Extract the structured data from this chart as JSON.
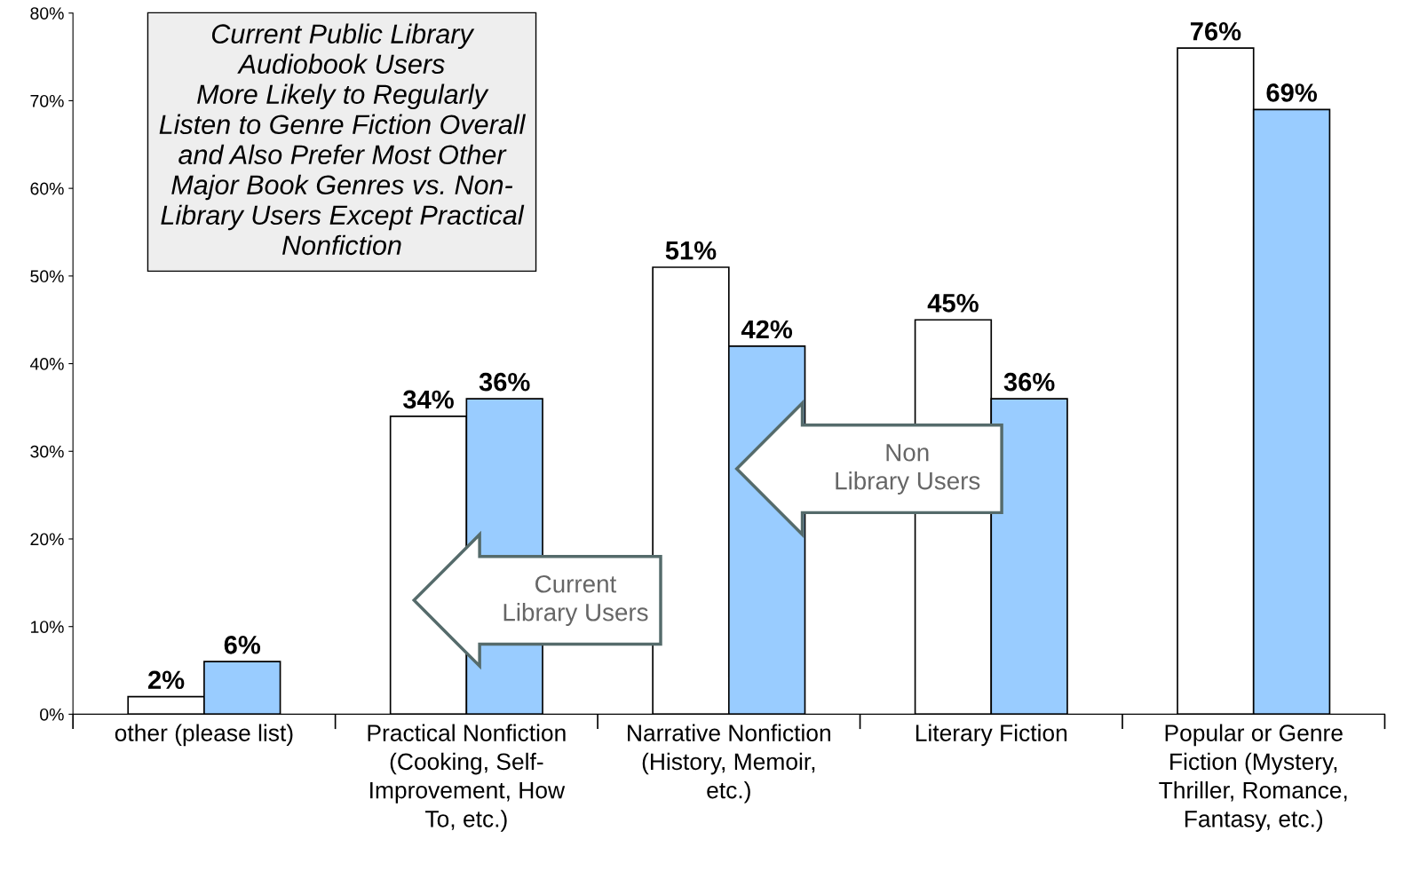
{
  "chart_data": {
    "type": "bar",
    "title": "Current Public Library\nAudiobook Users\nMore Likely to Regularly\nListen to Genre Fiction Overall\nand Also Prefer Most Other\nMajor Book Genres vs. Non-\nLibrary Users Except Practical\nNonfiction",
    "categories": [
      "other (please list)",
      "Practical Nonfiction\n(Cooking, Self-\nImprovement, How\nTo, etc.)",
      "Narrative Nonfiction\n(History, Memoir,\netc.)",
      "Literary Fiction",
      "Popular or Genre\nFiction (Mystery,\nThriller, Romance,\nFantasy, etc.)"
    ],
    "series": [
      {
        "name": "Current\nLibrary Users",
        "color": "#ffffff",
        "values": [
          2,
          34,
          51,
          45,
          76
        ],
        "value_labels": [
          "2%",
          "34%",
          "51%",
          "45%",
          "76%"
        ]
      },
      {
        "name": "Non\nLibrary Users",
        "color": "#99ccff",
        "values": [
          6,
          36,
          42,
          36,
          69
        ],
        "value_labels": [
          "6%",
          "36%",
          "42%",
          "36%",
          "69%"
        ]
      }
    ],
    "ylim": [
      0,
      80
    ],
    "yticks": [
      {
        "value": 0,
        "label": "0%"
      },
      {
        "value": 10,
        "label": "10%"
      },
      {
        "value": 20,
        "label": "20%"
      },
      {
        "value": 30,
        "label": "30%"
      },
      {
        "value": 40,
        "label": "40%"
      },
      {
        "value": 50,
        "label": "50%"
      },
      {
        "value": 60,
        "label": "60%"
      },
      {
        "value": 70,
        "label": "70%"
      },
      {
        "value": 80,
        "label": "80%"
      }
    ],
    "grid": false,
    "legend": false
  }
}
